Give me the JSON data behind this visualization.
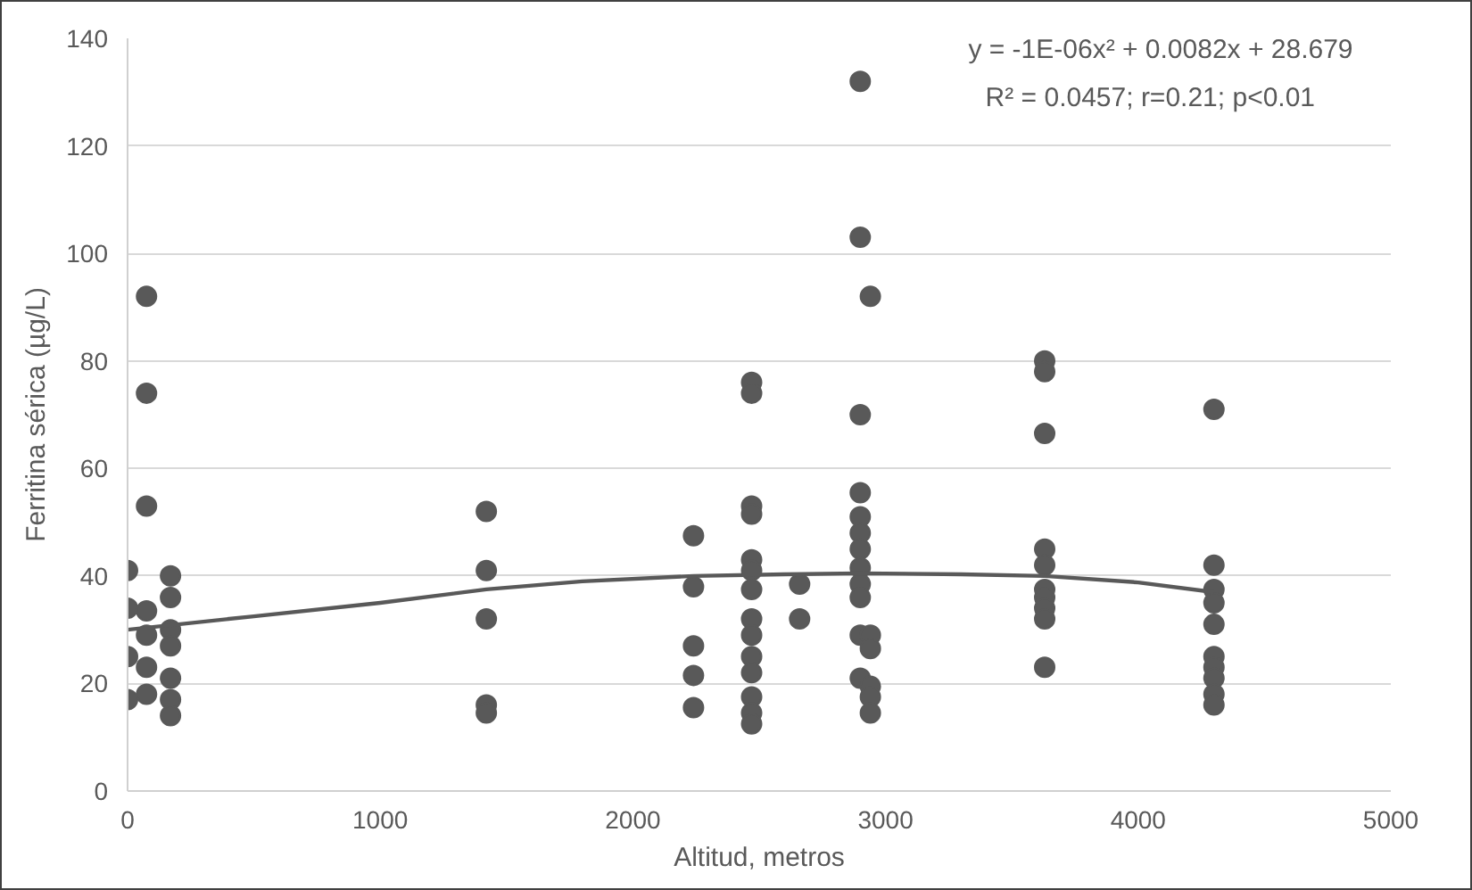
{
  "chart_data": {
    "type": "scatter",
    "xlabel": "Altitud, metros",
    "ylabel": "Ferritina sérica (µg/L)",
    "xlim": [
      0,
      5000
    ],
    "ylim": [
      0,
      140
    ],
    "xticks": [
      0,
      1000,
      2000,
      3000,
      4000,
      5000
    ],
    "yticks": [
      0,
      20,
      40,
      60,
      80,
      100,
      120,
      140
    ],
    "grid": "y",
    "marker": "circle",
    "annotations": [
      "y = -1E-06x² + 0.0082x + 28.679",
      "R² = 0.0457; r=0.21; p<0.01"
    ],
    "series": [
      {
        "color": "#595959",
        "x": [
          0,
          0,
          0,
          0,
          75,
          75,
          75,
          75,
          75,
          75,
          75,
          170,
          170,
          170,
          170,
          170,
          170,
          170,
          1420,
          1420,
          1420,
          1420,
          1420,
          2240,
          2240,
          2240,
          2240,
          2240,
          2470,
          2470,
          2470,
          2470,
          2470,
          2470,
          2470,
          2470,
          2470,
          2470,
          2470,
          2470,
          2470,
          2470,
          2660,
          2660,
          2900,
          2900,
          2900,
          2900,
          2900,
          2900,
          2900,
          2900,
          2900,
          2900,
          2900,
          2900,
          2940,
          2940,
          2940,
          2940,
          2940,
          2940,
          3630,
          3630,
          3630,
          3630,
          3630,
          3630,
          3630,
          3630,
          3630,
          3630,
          4300,
          4300,
          4300,
          4300,
          4300,
          4300,
          4300,
          4300,
          4300,
          4300
        ],
        "values": [
          41,
          34,
          25,
          17,
          92,
          74,
          53,
          33.5,
          29,
          23,
          18,
          40,
          36,
          30,
          27,
          21,
          17,
          14,
          52,
          41,
          32,
          16,
          14.5,
          47.5,
          38,
          27,
          21.5,
          15.5,
          76,
          74,
          53,
          51.5,
          43,
          41,
          37.5,
          32,
          29,
          25,
          22,
          17.5,
          14.5,
          12.5,
          38.5,
          32,
          132,
          103,
          70,
          55.5,
          51,
          48,
          45,
          41.5,
          38.5,
          36,
          29,
          21,
          92,
          29,
          26.5,
          19.5,
          17.5,
          14.5,
          80,
          78,
          66.5,
          45,
          42,
          37.5,
          36,
          34,
          32,
          23,
          71,
          42,
          37.5,
          35,
          31,
          25,
          23,
          21,
          18,
          16
        ]
      },
      {
        "type": "line",
        "color": "#595959",
        "marker": "none",
        "x": [
          0,
          500,
          1000,
          1420,
          1800,
          2240,
          2600,
          2900,
          3300,
          3630,
          4000,
          4300
        ],
        "values": [
          30,
          32.5,
          35,
          37.5,
          39,
          40,
          40.3,
          40.5,
          40.3,
          40,
          38.8,
          37
        ]
      }
    ]
  }
}
